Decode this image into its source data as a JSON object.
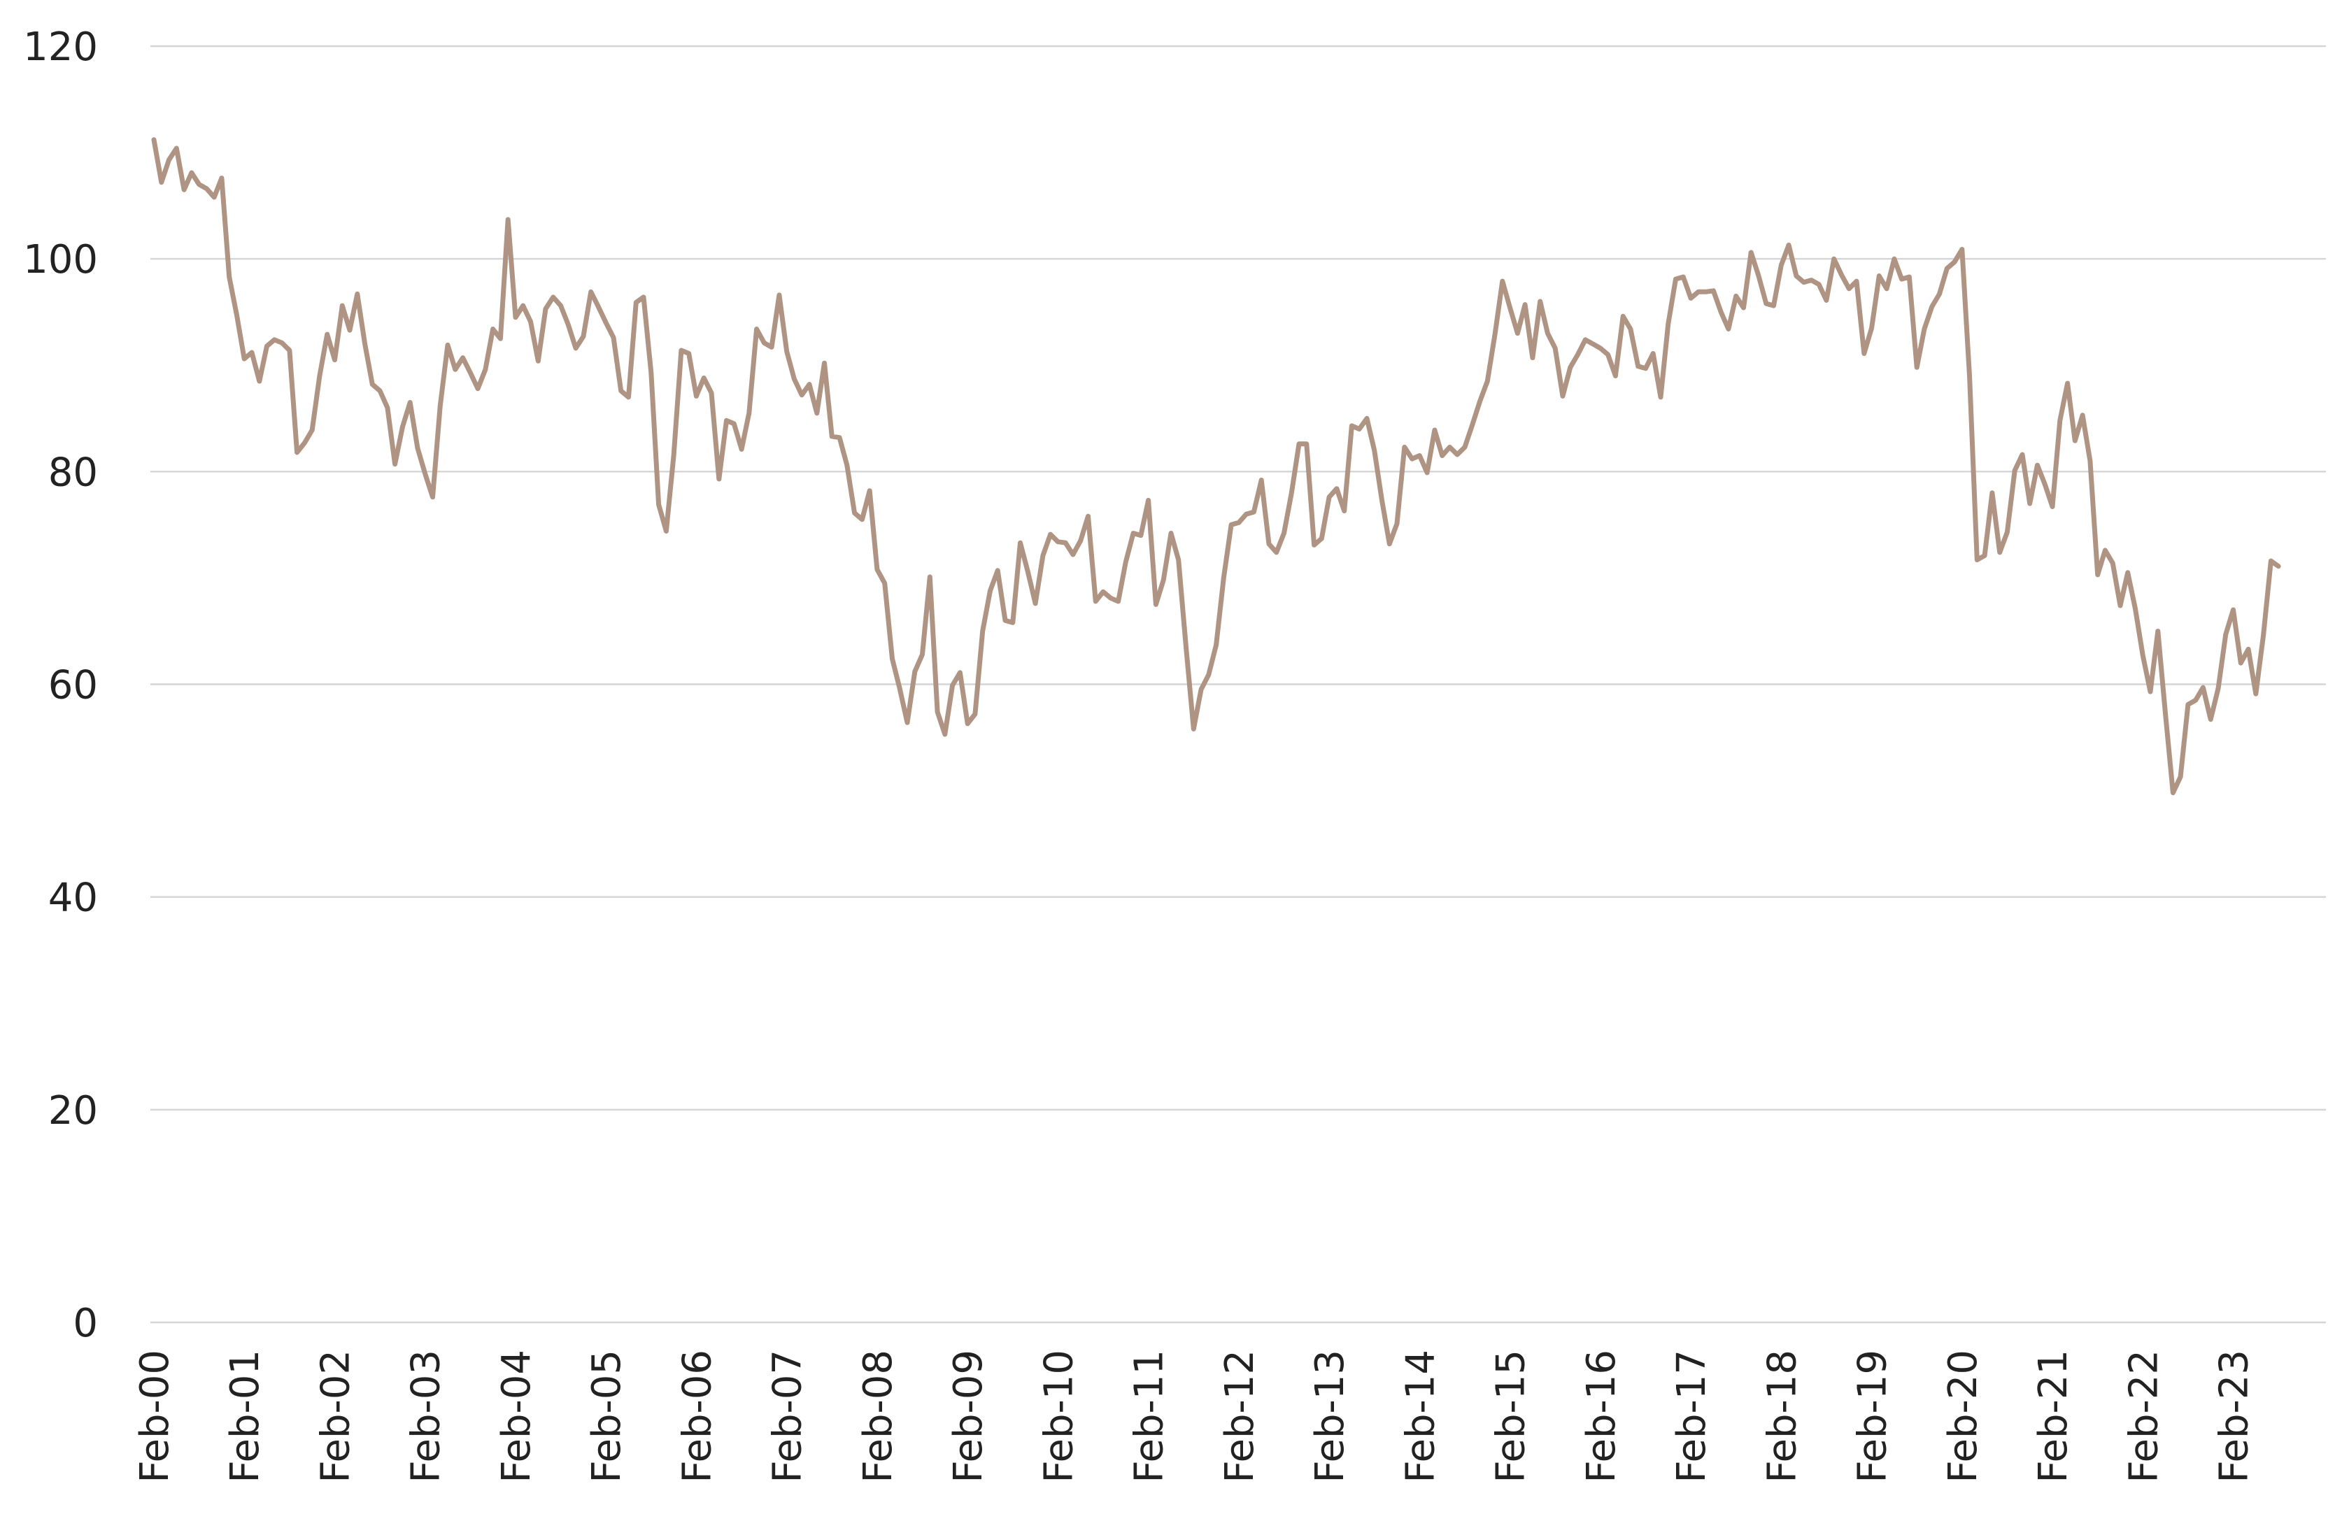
{
  "colors": {
    "series": "#b09483",
    "grid": "#d6d6d6",
    "text": "#222222"
  },
  "chart_data": {
    "type": "line",
    "title": "",
    "xlabel": "",
    "ylabel": "",
    "ylim": [
      0,
      120
    ],
    "grid": true,
    "legend": "none",
    "y_ticks": [
      "0",
      "20",
      "40",
      "60",
      "80",
      "100",
      "120"
    ],
    "x_tick_labels": [
      "Feb-00",
      "Feb-01",
      "Feb-02",
      "Feb-03",
      "Feb-04",
      "Feb-05",
      "Feb-06",
      "Feb-07",
      "Feb-08",
      "Feb-09",
      "Feb-10",
      "Feb-11",
      "Feb-12",
      "Feb-13",
      "Feb-14",
      "Feb-15",
      "Feb-16",
      "Feb-17",
      "Feb-18",
      "Feb-19",
      "Feb-20",
      "Feb-21",
      "Feb-22",
      "Feb-23"
    ],
    "x_start": "2000-02",
    "series": [
      {
        "values": [
          111.2,
          107.2,
          109.3,
          110.4,
          106.5,
          108.1,
          107.0,
          106.6,
          105.8,
          107.6,
          98.3,
          94.7,
          90.6,
          91.2,
          88.5,
          91.8,
          92.4,
          92.1,
          91.4,
          81.8,
          82.7,
          83.9,
          89.0,
          92.9,
          90.5,
          95.6,
          93.3,
          96.7,
          92.0,
          88.2,
          87.6,
          86.0,
          80.7,
          84.2,
          86.5,
          82.2,
          79.8,
          77.6,
          86.2,
          91.9,
          89.6,
          90.7,
          89.3,
          87.8,
          89.6,
          93.4,
          92.5,
          103.7,
          94.5,
          95.6,
          94.1,
          90.4,
          95.3,
          96.4,
          95.6,
          93.8,
          91.6,
          92.7,
          96.9,
          95.5,
          94.0,
          92.6,
          87.6,
          87.0,
          95.9,
          96.4,
          89.3,
          76.9,
          74.4,
          81.5,
          91.4,
          91.1,
          87.1,
          88.8,
          87.4,
          79.3,
          84.8,
          84.5,
          82.1,
          85.5,
          93.4,
          92.1,
          91.7,
          96.6,
          91.3,
          88.7,
          87.2,
          88.2,
          85.5,
          90.2,
          83.3,
          83.2,
          80.6,
          76.1,
          75.5,
          78.2,
          70.8,
          69.5,
          62.4,
          59.6,
          56.4,
          61.2,
          62.8,
          70.1,
          57.4,
          55.3,
          59.9,
          61.1,
          56.3,
          57.2,
          65.0,
          68.8,
          70.7,
          66.0,
          65.8,
          73.3,
          70.6,
          67.6,
          72.1,
          74.1,
          73.4,
          73.3,
          72.2,
          73.5,
          75.8,
          67.8,
          68.7,
          68.1,
          67.8,
          71.5,
          74.2,
          74.0,
          77.3,
          67.5,
          69.8,
          74.2,
          71.7,
          63.5,
          55.8,
          59.5,
          60.9,
          63.7,
          70.0,
          75.0,
          75.2,
          76.0,
          76.2,
          79.2,
          73.2,
          72.4,
          74.2,
          78.0,
          82.6,
          82.6,
          73.1,
          73.7,
          77.6,
          78.4,
          76.3,
          84.3,
          84.0,
          85.0,
          82.0,
          77.3,
          73.2,
          75.1,
          82.3,
          81.2,
          81.5,
          79.9,
          83.9,
          81.5,
          82.3,
          81.6,
          82.3,
          84.4,
          86.6,
          88.5,
          92.9,
          97.9,
          95.4,
          93.0,
          95.7,
          90.7,
          96.0,
          93.0,
          91.6,
          87.1,
          89.8,
          91.0,
          92.4,
          92.0,
          91.6,
          91.0,
          89.0,
          94.6,
          93.4,
          89.9,
          89.7,
          91.1,
          87.0,
          93.9,
          98.1,
          98.3,
          96.3,
          96.9,
          96.9,
          97.0,
          95.0,
          93.4,
          96.5,
          95.4,
          100.6,
          98.4,
          95.8,
          95.6,
          99.4,
          101.3,
          98.4,
          97.8,
          98.0,
          97.6,
          96.1,
          100.0,
          98.5,
          97.2,
          97.9,
          91.1,
          93.5,
          98.4,
          97.2,
          100.0,
          98.1,
          98.3,
          89.8,
          93.4,
          95.5,
          96.7,
          99.1,
          99.7,
          100.9,
          88.9,
          71.7,
          72.1,
          78.0,
          72.4,
          74.3,
          80.1,
          81.6,
          77.0,
          80.6,
          78.8,
          76.7,
          84.8,
          88.3,
          82.9,
          85.3,
          81.0,
          70.3,
          72.6,
          71.4,
          67.4,
          70.5,
          67.1,
          62.7,
          59.3,
          65.0,
          57.2,
          49.8,
          51.3,
          58.1,
          58.5,
          59.7,
          56.7,
          59.6,
          64.7,
          67.0,
          62.0,
          63.3,
          59.1,
          64.6,
          71.6,
          71.1
        ]
      }
    ]
  }
}
